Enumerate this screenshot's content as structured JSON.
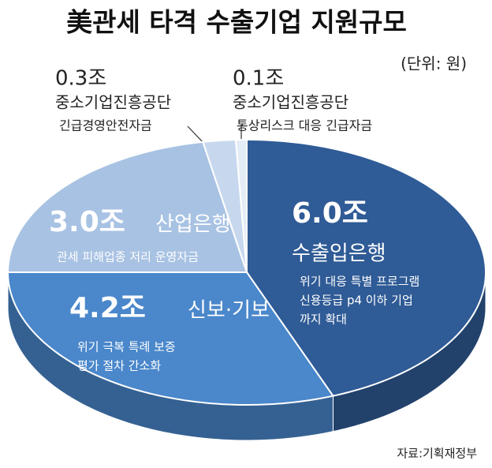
{
  "chart_data": {
    "type": "pie",
    "title": "美관세 타격 수출기업 지원규모",
    "unit": "(단위: 원)",
    "source": "자료:기획재정부",
    "categories": [
      "수출입은행",
      "신보·기보",
      "산업은행",
      "중소기업진흥공단",
      "중소기업진흥공단"
    ],
    "values": [
      6.0,
      4.2,
      3.0,
      0.3,
      0.1
    ],
    "value_labels": [
      "6.0조",
      "4.2조",
      "3.0조",
      "0.3조",
      "0.1조"
    ],
    "descriptions": [
      [
        "위기 대응 특별 프로그램",
        "신용등급 p4 이하 기업",
        "까지 확대"
      ],
      [
        "위기 극복 특례 보증",
        "평가 절차 간소화"
      ],
      [
        "관세 피해업종 저리 운영자금"
      ],
      [
        "긴급경영안전자금"
      ],
      [
        "통상리스크 대응 긴급자금"
      ]
    ],
    "colors": [
      "#2f5b96",
      "#4a87cb",
      "#a8c2e3",
      "#c7d8ee",
      "#e4ecf6"
    ]
  }
}
